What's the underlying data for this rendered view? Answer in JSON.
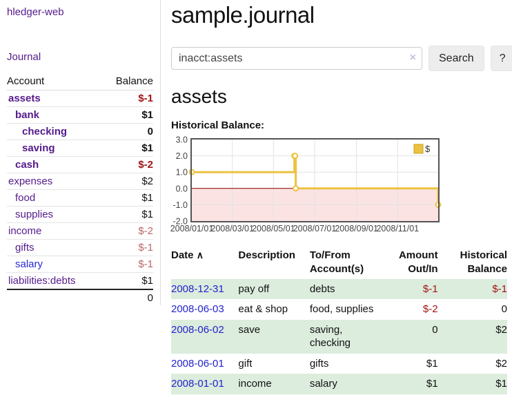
{
  "app": {
    "title": "hledger-web",
    "nav_journal": "Journal"
  },
  "colors": {
    "purple_link": "#551a8b",
    "blue_link": "#2323cc",
    "negative_strong": "#a11414",
    "negative_soft": "#bb6666",
    "text": "#111111",
    "row_stripe": "#dcecdd",
    "chart_line": "#edc240",
    "chart_negative_region": "#fbe3e3",
    "chart_zero_line": "#8b0000"
  },
  "sidebar": {
    "table": {
      "col_account": "Account",
      "col_balance": "Balance",
      "rows": [
        {
          "name": "assets",
          "indent": 0,
          "bold": true,
          "name_color": "#551a8b",
          "balance": "$-1",
          "balance_color": "#a11414"
        },
        {
          "name": "bank",
          "indent": 1,
          "bold": true,
          "name_color": "#551a8b",
          "balance": "$1",
          "balance_color": "#111111"
        },
        {
          "name": "checking",
          "indent": 2,
          "bold": true,
          "name_color": "#551a8b",
          "balance": "0",
          "balance_color": "#111111"
        },
        {
          "name": "saving",
          "indent": 2,
          "bold": true,
          "name_color": "#551a8b",
          "balance": "$1",
          "balance_color": "#111111"
        },
        {
          "name": "cash",
          "indent": 1,
          "bold": true,
          "name_color": "#551a8b",
          "balance": "$-2",
          "balance_color": "#a11414"
        },
        {
          "name": "expenses",
          "indent": 0,
          "bold": false,
          "name_color": "#551a8b",
          "balance": "$2",
          "balance_color": "#111111"
        },
        {
          "name": "food",
          "indent": 1,
          "bold": false,
          "name_color": "#551a8b",
          "balance": "$1",
          "balance_color": "#111111"
        },
        {
          "name": "supplies",
          "indent": 1,
          "bold": false,
          "name_color": "#551a8b",
          "balance": "$1",
          "balance_color": "#111111"
        },
        {
          "name": "income",
          "indent": 0,
          "bold": false,
          "name_color": "#551a8b",
          "balance": "$-2",
          "balance_color": "#bb6666"
        },
        {
          "name": "gifts",
          "indent": 1,
          "bold": false,
          "name_color": "#551a8b",
          "balance": "$-1",
          "balance_color": "#bb6666"
        },
        {
          "name": "salary",
          "indent": 1,
          "bold": false,
          "name_color": "#2b2bd0",
          "balance": "$-1",
          "balance_color": "#bb6666"
        },
        {
          "name": "liabilities:debts",
          "indent": 0,
          "bold": false,
          "name_color": "#551a8b",
          "balance": "$1",
          "balance_color": "#111111"
        }
      ],
      "total": "0"
    }
  },
  "main": {
    "title": "sample.journal",
    "search": {
      "value": "inacct:assets",
      "clear_icon": "×",
      "button_label": "Search",
      "help_label": "?"
    },
    "account_heading": "assets",
    "chart_heading": "Historical Balance:"
  },
  "chart_data": {
    "type": "line",
    "title": "Historical Balance:",
    "series": [
      {
        "name": "$",
        "color": "#edc240",
        "steps": true,
        "points": [
          [
            "2008-01-01",
            1
          ],
          [
            "2008-06-01",
            2
          ],
          [
            "2008-06-02",
            2
          ],
          [
            "2008-06-03",
            0
          ],
          [
            "2008-12-31",
            -1
          ]
        ]
      }
    ],
    "x_range": [
      "2008-01-01",
      "2008-12-31"
    ],
    "x_ticks": [
      "2008/01/01",
      "2008/03/01",
      "2008/05/01",
      "2008/07/01",
      "2008/09/01",
      "2008/11/01"
    ],
    "y_ticks": [
      3.0,
      2.0,
      1.0,
      0.0,
      -1.0,
      -2.0
    ],
    "ylim": [
      -2,
      3
    ],
    "grid": true,
    "legend": {
      "label": "$",
      "position": "top-right"
    },
    "negative_region_color": "#fbe3e3",
    "zero_line_color": "#8b0000",
    "border_color": "#545454",
    "grid_color": "#e2e2e2"
  },
  "register": {
    "headers": {
      "date": "Date",
      "sort_icon": "∧",
      "description": "Description",
      "accounts": "To/From Account(s)",
      "amount": "Amount Out/In",
      "balance": "Historical Balance"
    },
    "rows": [
      {
        "date": "2008-12-31",
        "description": "pay off",
        "accounts": "debts",
        "amount": "$-1",
        "amount_color": "#a11414",
        "balance": "$-1",
        "balance_color": "#a11414"
      },
      {
        "date": "2008-06-03",
        "description": "eat & shop",
        "accounts": "food, supplies",
        "amount": "$-2",
        "amount_color": "#a11414",
        "balance": "0",
        "balance_color": "#111111"
      },
      {
        "date": "2008-06-02",
        "description": "save",
        "accounts": "saving, checking",
        "amount": "0",
        "amount_color": "#111111",
        "balance": "$2",
        "balance_color": "#111111"
      },
      {
        "date": "2008-06-01",
        "description": "gift",
        "accounts": "gifts",
        "amount": "$1",
        "amount_color": "#111111",
        "balance": "$2",
        "balance_color": "#111111"
      },
      {
        "date": "2008-01-01",
        "description": "income",
        "accounts": "salary",
        "amount": "$1",
        "amount_color": "#111111",
        "balance": "$1",
        "balance_color": "#111111"
      }
    ],
    "date_link_color": "#2323cc"
  }
}
